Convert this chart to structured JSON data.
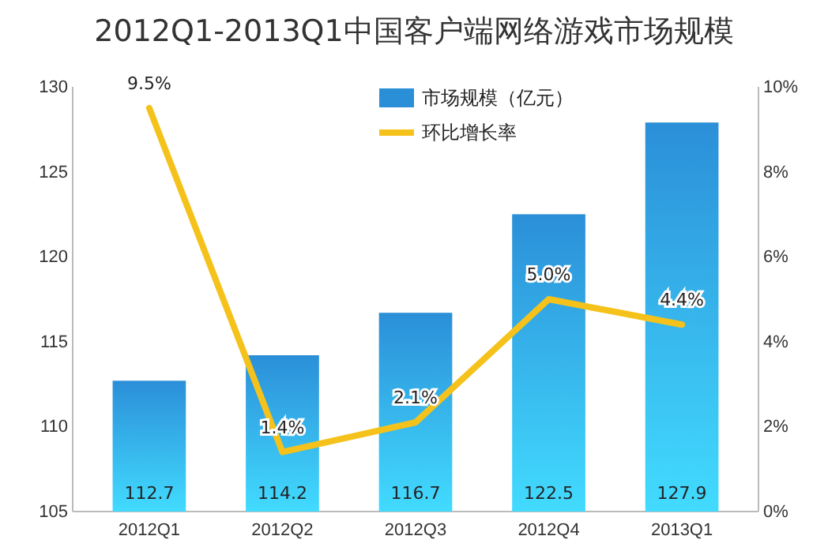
{
  "chart_data": {
    "type": "bar",
    "title": "2012Q1-2013Q1中国客户端网络游戏市场规模",
    "categories": [
      "2012Q1",
      "2012Q2",
      "2012Q3",
      "2012Q4",
      "2013Q1"
    ],
    "series": [
      {
        "name": "市场规模（亿元）",
        "color": "#2b8fd8",
        "values": [
          112.7,
          114.2,
          116.7,
          122.5,
          127.9
        ],
        "value_labels": [
          "112.7",
          "114.2",
          "116.7",
          "122.5",
          "127.9"
        ]
      },
      {
        "name": "环比增长率",
        "type": "line",
        "axis": "y2",
        "color": "#f5c21b",
        "values": [
          9.5,
          1.4,
          2.1,
          5.0,
          4.4
        ],
        "value_labels": [
          "9.5%",
          "1.4%",
          "2.1%",
          "5.0%",
          "4.4%"
        ]
      }
    ],
    "ylim": [
      105,
      130
    ],
    "yticks": [
      105,
      110,
      115,
      120,
      125,
      130
    ],
    "y2lim": [
      0,
      10
    ],
    "y2ticks": [
      {
        "value": 0,
        "label": "0%"
      },
      {
        "value": 2,
        "label": "2%"
      },
      {
        "value": 4,
        "label": "4%"
      },
      {
        "value": 6,
        "label": "6%"
      },
      {
        "value": 8,
        "label": "8%"
      },
      {
        "value": 10,
        "label": "10%"
      }
    ],
    "legend": "top",
    "grid": false,
    "marker": "none",
    "line_style": "solid"
  }
}
